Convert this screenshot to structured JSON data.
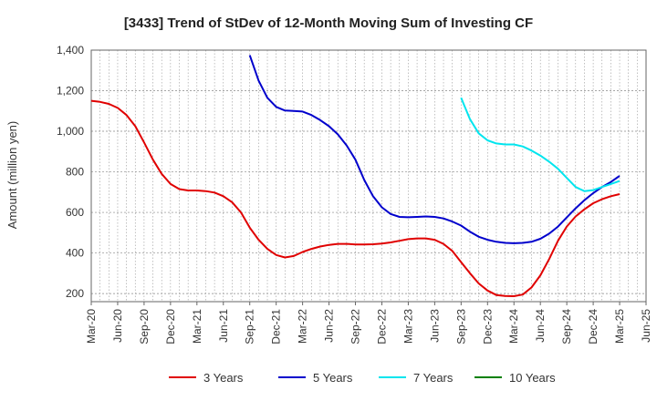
{
  "chart_data": {
    "type": "line",
    "title": "[3433]  Trend of StDev of 12-Month Moving Sum of Investing CF",
    "xlabel": "",
    "ylabel": "Amount (million yen)",
    "ylim": [
      160,
      1400
    ],
    "yticks": [
      200,
      400,
      600,
      800,
      "1,000",
      "1,200",
      "1,400"
    ],
    "xlim": [
      "2020-03",
      "2025-06"
    ],
    "xticks": [
      "Mar-20",
      "Jun-20",
      "Sep-20",
      "Dec-20",
      "Mar-21",
      "Jun-21",
      "Sep-21",
      "Dec-21",
      "Mar-22",
      "Jun-22",
      "Sep-22",
      "Dec-22",
      "Mar-23",
      "Jun-23",
      "Sep-23",
      "Dec-23",
      "Mar-24",
      "Jun-24",
      "Sep-24",
      "Dec-24",
      "Mar-25",
      "Jun-25"
    ],
    "grid": true,
    "legend_position": "bottom",
    "series": [
      {
        "name": "3 Years",
        "color": "#e00000",
        "x": [
          "2020-03",
          "2020-04",
          "2020-05",
          "2020-06",
          "2020-07",
          "2020-08",
          "2020-09",
          "2020-10",
          "2020-11",
          "2020-12",
          "2021-01",
          "2021-02",
          "2021-03",
          "2021-04",
          "2021-05",
          "2021-06",
          "2021-07",
          "2021-08",
          "2021-09",
          "2021-10",
          "2021-11",
          "2021-12",
          "2022-01",
          "2022-02",
          "2022-03",
          "2022-04",
          "2022-05",
          "2022-06",
          "2022-07",
          "2022-08",
          "2022-09",
          "2022-10",
          "2022-11",
          "2022-12",
          "2023-01",
          "2023-02",
          "2023-03",
          "2023-04",
          "2023-05",
          "2023-06",
          "2023-07",
          "2023-08",
          "2023-09",
          "2023-10",
          "2023-11",
          "2023-12",
          "2024-01",
          "2024-02",
          "2024-03",
          "2024-04",
          "2024-05",
          "2024-06",
          "2024-07",
          "2024-08",
          "2024-09",
          "2024-10",
          "2024-11",
          "2024-12",
          "2025-01",
          "2025-02",
          "2025-03"
        ],
        "values": [
          1150,
          1145,
          1135,
          1115,
          1080,
          1025,
          945,
          860,
          790,
          740,
          715,
          708,
          708,
          705,
          698,
          680,
          650,
          600,
          525,
          465,
          420,
          390,
          378,
          385,
          405,
          420,
          432,
          440,
          445,
          445,
          442,
          442,
          443,
          446,
          452,
          460,
          468,
          472,
          472,
          465,
          445,
          410,
          355,
          300,
          250,
          215,
          193,
          188,
          187,
          195,
          230,
          290,
          370,
          460,
          530,
          580,
          615,
          645,
          665,
          680,
          690
        ]
      },
      {
        "name": "5 Years",
        "color": "#0000cc",
        "x": [
          "2021-09",
          "2021-10",
          "2021-11",
          "2021-12",
          "2022-01",
          "2022-02",
          "2022-03",
          "2022-04",
          "2022-05",
          "2022-06",
          "2022-07",
          "2022-08",
          "2022-09",
          "2022-10",
          "2022-11",
          "2022-12",
          "2023-01",
          "2023-02",
          "2023-03",
          "2023-04",
          "2023-05",
          "2023-06",
          "2023-07",
          "2023-08",
          "2023-09",
          "2023-10",
          "2023-11",
          "2023-12",
          "2024-01",
          "2024-02",
          "2024-03",
          "2024-04",
          "2024-05",
          "2024-06",
          "2024-07",
          "2024-08",
          "2024-09",
          "2024-10",
          "2024-11",
          "2024-12",
          "2025-01",
          "2025-02",
          "2025-03"
        ],
        "values": [
          1375,
          1250,
          1165,
          1120,
          1102,
          1100,
          1097,
          1080,
          1055,
          1025,
          985,
          930,
          860,
          760,
          680,
          625,
          592,
          578,
          576,
          578,
          580,
          578,
          570,
          555,
          535,
          505,
          480,
          465,
          455,
          450,
          448,
          450,
          455,
          470,
          495,
          530,
          575,
          620,
          660,
          695,
          725,
          750,
          780
        ]
      },
      {
        "name": "7 Years",
        "color": "#00e5ee",
        "x": [
          "2023-09",
          "2023-10",
          "2023-11",
          "2023-12",
          "2024-01",
          "2024-02",
          "2024-03",
          "2024-04",
          "2024-05",
          "2024-06",
          "2024-07",
          "2024-08",
          "2024-09",
          "2024-10",
          "2024-11",
          "2024-12",
          "2025-01",
          "2025-02",
          "2025-03"
        ],
        "values": [
          1165,
          1060,
          990,
          955,
          940,
          935,
          935,
          925,
          905,
          880,
          850,
          815,
          770,
          725,
          705,
          710,
          725,
          740,
          755
        ]
      },
      {
        "name": "10 Years",
        "color": "#008000",
        "x": [],
        "values": []
      }
    ]
  }
}
